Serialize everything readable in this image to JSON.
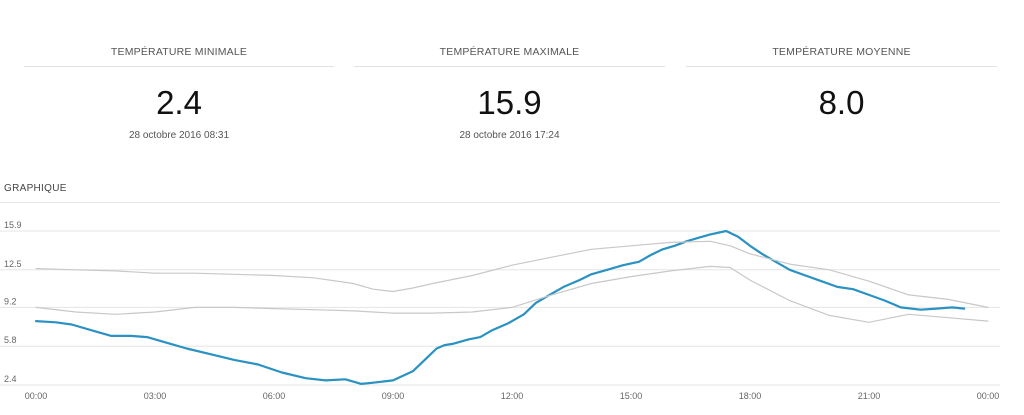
{
  "stats": [
    {
      "title": "Température minimale",
      "value": "2.4",
      "date": "28 octobre 2016 08:31"
    },
    {
      "title": "Température maximale",
      "value": "15.9",
      "date": "28 octobre 2016 17:24"
    },
    {
      "title": "Température moyenne",
      "value": "8.0",
      "date": ""
    }
  ],
  "section_title": "Graphique",
  "colors": {
    "main": "#2a92c2",
    "band": "#c8c8c8",
    "grid": "#e5e5e5"
  },
  "chart_data": {
    "type": "line",
    "title": "",
    "xlabel": "",
    "ylabel": "",
    "x_ticks": [
      "00:00",
      "03:00",
      "06:00",
      "09:00",
      "12:00",
      "15:00",
      "18:00",
      "21:00",
      "00:00"
    ],
    "y_ticks": [
      2.4,
      5.8,
      9.2,
      12.5,
      15.9
    ],
    "xlim": [
      0,
      24
    ],
    "ylim": [
      2.4,
      15.9
    ],
    "grid": true,
    "series": [
      {
        "role": "main",
        "x": [
          0,
          0.5,
          0.9,
          1.5,
          1.9,
          2.4,
          2.8,
          3.3,
          3.8,
          4.4,
          5.0,
          5.6,
          6.2,
          6.8,
          7.3,
          7.8,
          8.2,
          8.5,
          9.0,
          9.5,
          9.8,
          10.1,
          10.3,
          10.5,
          10.9,
          11.2,
          11.5,
          11.9,
          12.3,
          12.6,
          13.0,
          13.3,
          13.7,
          14.0,
          14.4,
          14.8,
          15.2,
          15.5,
          15.8,
          16.1,
          16.4,
          16.7,
          17.0,
          17.4,
          17.7,
          18.0,
          18.3,
          18.6,
          19.0,
          19.4,
          19.8,
          20.2,
          20.6,
          21.0,
          21.4,
          21.8,
          22.3,
          22.7,
          23.1,
          23.4
        ],
        "y": [
          8.0,
          7.9,
          7.7,
          7.1,
          6.7,
          6.7,
          6.6,
          6.1,
          5.6,
          5.1,
          4.6,
          4.2,
          3.5,
          3.0,
          2.8,
          2.9,
          2.5,
          2.6,
          2.8,
          3.6,
          4.6,
          5.6,
          5.9,
          6.0,
          6.4,
          6.6,
          7.2,
          7.8,
          8.6,
          9.6,
          10.4,
          11.0,
          11.6,
          12.1,
          12.5,
          12.9,
          13.2,
          13.8,
          14.3,
          14.6,
          15.0,
          15.3,
          15.6,
          15.9,
          15.4,
          14.6,
          13.9,
          13.3,
          12.5,
          12.0,
          11.5,
          11.0,
          10.8,
          10.3,
          9.8,
          9.2,
          9.0,
          9.1,
          9.2,
          9.1
        ]
      },
      {
        "role": "band-upper",
        "x": [
          0,
          1,
          2,
          3,
          4,
          5,
          6,
          7,
          8,
          8.5,
          9,
          9.5,
          10,
          11,
          12,
          13,
          14,
          15,
          16,
          17,
          17.5,
          18,
          19,
          20,
          21,
          22,
          23,
          24
        ],
        "y": [
          12.6,
          12.5,
          12.4,
          12.2,
          12.2,
          12.1,
          12.0,
          11.8,
          11.3,
          10.8,
          10.6,
          10.9,
          11.3,
          12.0,
          12.9,
          13.6,
          14.3,
          14.6,
          14.9,
          15.0,
          14.6,
          13.9,
          13.0,
          12.5,
          11.5,
          10.3,
          9.9,
          9.2
        ]
      },
      {
        "role": "band-lower",
        "x": [
          0,
          1,
          2,
          3,
          4,
          5,
          6,
          7,
          8,
          9,
          10,
          11,
          12,
          13,
          14,
          15,
          16,
          17,
          17.5,
          18,
          19,
          20,
          21,
          22,
          23,
          24
        ],
        "y": [
          9.2,
          8.8,
          8.6,
          8.8,
          9.2,
          9.2,
          9.1,
          9.0,
          8.9,
          8.7,
          8.7,
          8.8,
          9.2,
          10.3,
          11.3,
          11.9,
          12.4,
          12.8,
          12.7,
          11.6,
          9.8,
          8.5,
          7.9,
          8.6,
          8.3,
          8.0
        ]
      }
    ]
  }
}
